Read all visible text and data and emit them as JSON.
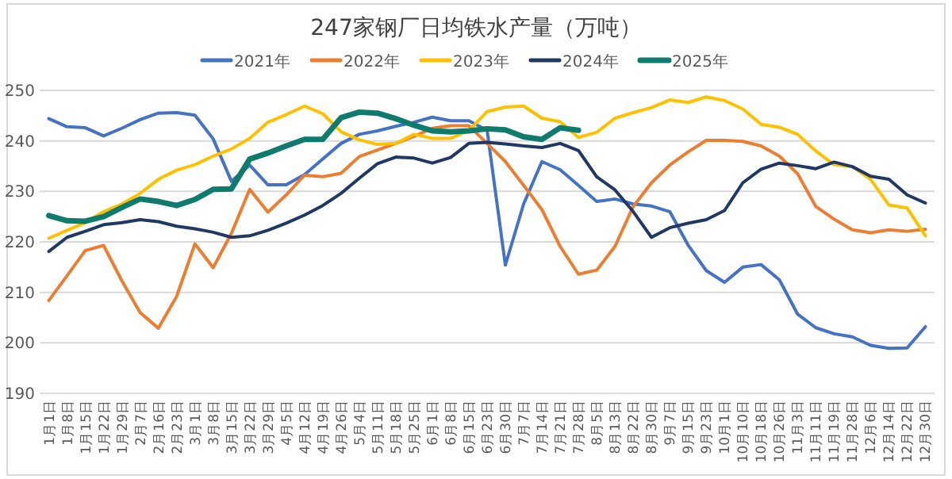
{
  "chart_data": {
    "type": "line",
    "title": "247家钢厂日均铁水产量（万吨）",
    "legend": "top",
    "grid": "y",
    "ylim": [
      190,
      250
    ],
    "yticks": [
      190,
      200,
      210,
      220,
      230,
      240,
      250
    ],
    "categories": [
      "1月1日",
      "1月8日",
      "1月15日",
      "1月22日",
      "1月29日",
      "2月7日",
      "2月16日",
      "2月23日",
      "3月1日",
      "3月8日",
      "3月15日",
      "3月22日",
      "3月29日",
      "4月5日",
      "4月12日",
      "4月19日",
      "4月26日",
      "5月4日",
      "5月11日",
      "5月18日",
      "5月25日",
      "6月1日",
      "6月8日",
      "6月15日",
      "6月23日",
      "6月30日",
      "7月7日",
      "7月14日",
      "7月21日",
      "7月28日",
      "8月5日",
      "8月13日",
      "8月22日",
      "8月30日",
      "9月7日",
      "9月15日",
      "9月23日",
      "10月1日",
      "10月10日",
      "10月18日",
      "10月26日",
      "11月3日",
      "11月11日",
      "11月19日",
      "11月28日",
      "12月6日",
      "12月14日",
      "12月22日",
      "12月30日"
    ],
    "series": [
      {
        "name": "2021年",
        "color": "#4472c4",
        "values": [
          244.4,
          242.8,
          242.6,
          241.0,
          242.5,
          244.2,
          245.5,
          245.6,
          245.1,
          240.4,
          232.0,
          235.2,
          231.3,
          231.3,
          233.3,
          236.4,
          239.5,
          241.3,
          242.0,
          242.9,
          243.7,
          244.7,
          244.0,
          244.0,
          242.1,
          215.4,
          227.5,
          235.9,
          234.3,
          231.2,
          228.0,
          228.5,
          227.5,
          227.1,
          226.0,
          219.4,
          214.3,
          212.0,
          215.0,
          215.5,
          212.5,
          205.7,
          203.0,
          201.8,
          201.2,
          199.5,
          198.9,
          199.0,
          203.2
        ]
      },
      {
        "name": "2022年",
        "color": "#ed7d31",
        "values": [
          208.4,
          213.3,
          218.3,
          219.3,
          212.3,
          206.0,
          202.9,
          209.2,
          219.6,
          214.9,
          221.7,
          230.4,
          225.9,
          229.3,
          233.2,
          232.9,
          233.6,
          236.9,
          238.2,
          239.5,
          240.9,
          242.5,
          243.0,
          243.0,
          239.5,
          235.9,
          231.2,
          226.4,
          219.1,
          213.6,
          214.4,
          219.1,
          227.0,
          231.7,
          235.2,
          237.8,
          240.1,
          240.1,
          239.9,
          239.0,
          237.0,
          233.5,
          227.0,
          224.5,
          222.4,
          221.8,
          222.4,
          222.1,
          222.5
        ]
      },
      {
        "name": "2023年",
        "color": "#ffc000",
        "values": [
          220.7,
          222.3,
          223.8,
          226.0,
          227.5,
          229.6,
          232.4,
          234.2,
          235.3,
          237.0,
          238.4,
          240.5,
          243.7,
          245.2,
          246.9,
          245.4,
          241.8,
          240.2,
          239.3,
          239.5,
          241.3,
          240.5,
          240.5,
          242.0,
          245.8,
          246.7,
          246.9,
          244.5,
          243.8,
          240.7,
          241.7,
          244.5,
          245.6,
          246.6,
          248.1,
          247.6,
          248.7,
          248.0,
          246.3,
          243.3,
          242.7,
          241.3,
          238.0,
          235.3,
          234.9,
          232.4,
          227.3,
          226.7,
          221.2
        ]
      },
      {
        "name": "2024年",
        "color": "#1f3864",
        "values": [
          218.1,
          220.9,
          222.1,
          223.4,
          223.8,
          224.4,
          224.0,
          223.1,
          222.6,
          221.9,
          220.9,
          221.2,
          222.3,
          223.7,
          225.3,
          227.2,
          229.6,
          232.6,
          235.5,
          236.8,
          236.6,
          235.6,
          236.7,
          239.5,
          239.7,
          239.4,
          239.0,
          238.7,
          239.5,
          238.1,
          232.9,
          230.3,
          226.0,
          220.9,
          222.8,
          223.7,
          224.4,
          226.2,
          231.7,
          234.4,
          235.6,
          235.1,
          234.5,
          235.8,
          234.9,
          233.0,
          232.4,
          229.3,
          227.7
        ]
      },
      {
        "name": "2025年",
        "color": "#0f7b6c",
        "values": [
          225.2,
          224.2,
          224.1,
          225.0,
          226.8,
          228.5,
          228.0,
          227.2,
          228.4,
          230.4,
          230.5,
          236.4,
          237.6,
          239.0,
          240.3,
          240.3,
          244.6,
          245.7,
          245.5,
          244.4,
          243.1,
          242.0,
          241.8,
          242.0,
          242.4,
          242.2,
          240.8,
          240.3,
          242.6,
          242.1,
          null,
          null,
          null,
          null,
          null,
          null,
          null,
          null,
          null,
          null,
          null,
          null,
          null,
          null,
          null,
          null,
          null,
          null,
          null
        ]
      }
    ]
  }
}
